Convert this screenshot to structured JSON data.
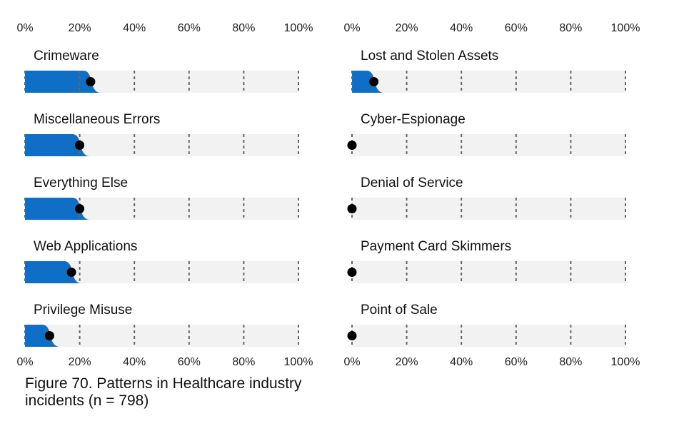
{
  "chart_data": [
    {
      "type": "bar",
      "categories": [
        "Crimeware",
        "Miscellaneous Errors",
        "Everything Else",
        "Web Applications",
        "Privilege Misuse"
      ],
      "values": [
        24,
        20,
        20,
        17,
        9
      ],
      "xlim": [
        0,
        100
      ],
      "ticks": [
        "0%",
        "20%",
        "40%",
        "60%",
        "80%",
        "100%"
      ],
      "colors": {
        "bar": "#0f6fc6",
        "track": "#f2f2f2",
        "point": "#000000",
        "grid": "#666666"
      }
    },
    {
      "type": "bar",
      "categories": [
        "Lost and Stolen Assets",
        "Cyber-Espionage",
        "Denial of Service",
        "Payment Card Skimmers",
        "Point of Sale"
      ],
      "values": [
        8,
        0,
        0,
        0,
        0
      ],
      "xlim": [
        0,
        100
      ],
      "ticks": [
        "0%",
        "20%",
        "40%",
        "60%",
        "80%",
        "100%"
      ],
      "colors": {
        "bar": "#0f6fc6",
        "track": "#f2f2f2",
        "point": "#000000",
        "grid": "#666666"
      }
    }
  ],
  "caption": "Figure 70. Patterns in Healthcare industry incidents (n = 798)"
}
